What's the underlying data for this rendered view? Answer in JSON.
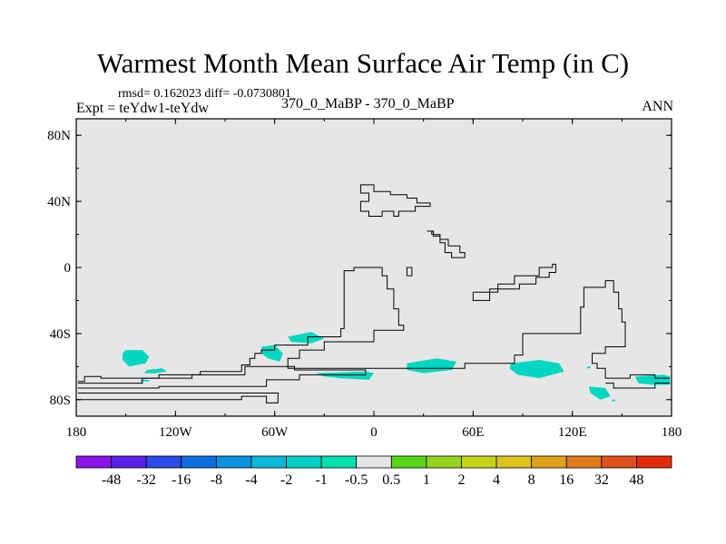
{
  "title": "Warmest Month Mean Surface Air Temp (in C)",
  "stats": "rmsd= 0.162023 diff= -0.0730801",
  "expt": "Expt = teYdw1-teYdw",
  "center_label": "370_0_MaBP - 370_0_MaBP",
  "period": "ANN",
  "map": {
    "projection": "cylindrical-equidistant",
    "lon_range": [
      -180,
      180
    ],
    "lat_range": [
      -90,
      90
    ],
    "background_color": "#e6e6e6",
    "lat_ticks": [
      {
        "value": 80,
        "label": "80N"
      },
      {
        "value": 40,
        "label": "40N"
      },
      {
        "value": 0,
        "label": "0"
      },
      {
        "value": -40,
        "label": "40S"
      },
      {
        "value": -80,
        "label": "80S"
      }
    ],
    "lon_ticks": [
      {
        "value": -180,
        "label": "180"
      },
      {
        "value": -120,
        "label": "120W"
      },
      {
        "value": -60,
        "label": "60W"
      },
      {
        "value": 0,
        "label": "0"
      },
      {
        "value": 60,
        "label": "60E"
      },
      {
        "value": 120,
        "label": "120E"
      },
      {
        "value": 180,
        "label": "180"
      }
    ],
    "coastlines": [
      [
        [
          -179,
          -69
        ],
        [
          -175,
          -69
        ],
        [
          -175,
          -66
        ],
        [
          -165,
          -66
        ],
        [
          -165,
          -67
        ],
        [
          -130,
          -67
        ],
        [
          -130,
          -65
        ],
        [
          -105,
          -65
        ],
        [
          -105,
          -63
        ],
        [
          -80,
          -63
        ],
        [
          -80,
          -59
        ],
        [
          -75,
          -59
        ],
        [
          -75,
          -55
        ],
        [
          -72,
          -55
        ],
        [
          -72,
          -52
        ],
        [
          -68,
          -52
        ],
        [
          -68,
          -50
        ],
        [
          -60,
          -50
        ],
        [
          -60,
          -47
        ],
        [
          -40,
          -47
        ],
        [
          -40,
          -42
        ],
        [
          -20,
          -42
        ],
        [
          -20,
          -37
        ],
        [
          -18,
          -37
        ],
        [
          -18,
          -2
        ],
        [
          -12,
          -2
        ],
        [
          -12,
          0
        ],
        [
          5,
          0
        ],
        [
          5,
          -5
        ],
        [
          8,
          -5
        ],
        [
          8,
          -13
        ],
        [
          12,
          -13
        ],
        [
          12,
          -25
        ],
        [
          15,
          -25
        ],
        [
          15,
          -35
        ],
        [
          18,
          -35
        ],
        [
          18,
          -38
        ],
        [
          0,
          -38
        ],
        [
          0,
          -45
        ],
        [
          -30,
          -45
        ],
        [
          -30,
          -50
        ],
        [
          -45,
          -50
        ],
        [
          -45,
          -55
        ],
        [
          -52,
          -55
        ],
        [
          -52,
          -61
        ],
        [
          55,
          -61
        ],
        [
          55,
          -58
        ],
        [
          85,
          -58
        ],
        [
          85,
          -53
        ],
        [
          90,
          -53
        ],
        [
          90,
          -40
        ],
        [
          125,
          -40
        ],
        [
          125,
          -24
        ],
        [
          127,
          -24
        ],
        [
          127,
          -12
        ],
        [
          140,
          -12
        ],
        [
          140,
          -8
        ],
        [
          145,
          -8
        ],
        [
          145,
          -15
        ],
        [
          148,
          -15
        ],
        [
          148,
          -25
        ],
        [
          150,
          -25
        ],
        [
          150,
          -33
        ],
        [
          152,
          -33
        ],
        [
          152,
          -48
        ],
        [
          140,
          -48
        ],
        [
          140,
          -52
        ],
        [
          132,
          -52
        ],
        [
          132,
          -58
        ],
        [
          135,
          -58
        ],
        [
          135,
          -61
        ],
        [
          140,
          -61
        ],
        [
          140,
          -67
        ],
        [
          155,
          -67
        ],
        [
          155,
          -65
        ],
        [
          170,
          -65
        ],
        [
          170,
          -67
        ],
        [
          179,
          -67
        ]
      ],
      [
        [
          -179,
          -73
        ],
        [
          -130,
          -73
        ],
        [
          -130,
          -72
        ],
        [
          -65,
          -72
        ],
        [
          -65,
          -68
        ],
        [
          -45,
          -68
        ],
        [
          -45,
          -65
        ],
        [
          -5,
          -65
        ],
        [
          -5,
          -62
        ],
        [
          -48,
          -62
        ],
        [
          -48,
          -60
        ],
        [
          -78,
          -60
        ],
        [
          -78,
          -65
        ],
        [
          -110,
          -65
        ],
        [
          -110,
          -67
        ],
        [
          -140,
          -67
        ],
        [
          -140,
          -70
        ],
        [
          -179,
          -70
        ]
      ],
      [
        [
          -179,
          -80
        ],
        [
          -80,
          -80
        ],
        [
          -80,
          -78
        ],
        [
          -65,
          -78
        ],
        [
          -65,
          -82
        ],
        [
          -58,
          -82
        ],
        [
          -58,
          -76
        ],
        [
          -179,
          -76
        ]
      ],
      [
        [
          140,
          -70
        ],
        [
          145,
          -70
        ],
        [
          145,
          -73
        ],
        [
          170,
          -73
        ],
        [
          170,
          -70
        ],
        [
          179,
          -70
        ]
      ],
      [
        [
          -8,
          48
        ],
        [
          -8,
          50
        ],
        [
          0,
          50
        ],
        [
          0,
          46
        ],
        [
          10,
          46
        ],
        [
          10,
          44
        ],
        [
          20,
          44
        ],
        [
          20,
          42
        ],
        [
          26,
          42
        ],
        [
          26,
          39
        ],
        [
          34,
          39
        ],
        [
          34,
          37
        ],
        [
          25,
          37
        ],
        [
          25,
          34
        ],
        [
          15,
          34
        ],
        [
          15,
          31
        ],
        [
          12,
          31
        ],
        [
          12,
          34
        ],
        [
          5,
          34
        ],
        [
          5,
          31
        ],
        [
          -3,
          31
        ],
        [
          -3,
          34
        ],
        [
          -8,
          34
        ],
        [
          -8,
          40
        ],
        [
          -3,
          40
        ],
        [
          -3,
          45
        ],
        [
          -8,
          45
        ],
        [
          -8,
          48
        ]
      ],
      [
        [
          32,
          22
        ],
        [
          36,
          22
        ],
        [
          36,
          19
        ],
        [
          40,
          19
        ],
        [
          40,
          15
        ],
        [
          43,
          15
        ],
        [
          43,
          9
        ],
        [
          47,
          9
        ],
        [
          47,
          6
        ],
        [
          55,
          6
        ],
        [
          55,
          9
        ],
        [
          52,
          9
        ],
        [
          52,
          13
        ],
        [
          45,
          13
        ],
        [
          45,
          17
        ],
        [
          40,
          17
        ],
        [
          40,
          20
        ],
        [
          35,
          20
        ],
        [
          35,
          22
        ],
        [
          32,
          22
        ]
      ],
      [
        [
          20,
          -5
        ],
        [
          23,
          -5
        ],
        [
          23,
          0
        ],
        [
          20,
          0
        ],
        [
          20,
          -5
        ]
      ],
      [
        [
          60,
          -15
        ],
        [
          75,
          -15
        ],
        [
          75,
          -10
        ],
        [
          85,
          -10
        ],
        [
          85,
          -5
        ],
        [
          100,
          -5
        ],
        [
          100,
          0
        ],
        [
          108,
          0
        ],
        [
          108,
          2
        ],
        [
          110,
          2
        ],
        [
          110,
          -3
        ],
        [
          106,
          -3
        ],
        [
          106,
          -6
        ],
        [
          98,
          -6
        ],
        [
          98,
          -10
        ],
        [
          88,
          -10
        ],
        [
          88,
          -13
        ],
        [
          70,
          -13
        ],
        [
          70,
          -20
        ],
        [
          60,
          -20
        ],
        [
          60,
          -15
        ]
      ]
    ],
    "anomaly_color": "#00d7c1",
    "anomalies": [
      [
        [
          -150,
          -50
        ],
        [
          -140,
          -50
        ],
        [
          -136,
          -54
        ],
        [
          -138,
          -58
        ],
        [
          -148,
          -60
        ],
        [
          -152,
          -56
        ],
        [
          -152,
          -52
        ]
      ],
      [
        [
          -137,
          -62
        ],
        [
          -128,
          -61
        ],
        [
          -125,
          -63
        ],
        [
          -132,
          -64
        ],
        [
          -139,
          -64
        ]
      ],
      [
        [
          -141,
          -68
        ],
        [
          -136,
          -68
        ],
        [
          -136,
          -69
        ],
        [
          -141,
          -69
        ]
      ],
      [
        [
          -68,
          -48
        ],
        [
          -60,
          -47
        ],
        [
          -55,
          -52
        ],
        [
          -57,
          -57
        ],
        [
          -64,
          -55
        ],
        [
          -68,
          -52
        ]
      ],
      [
        [
          -52,
          -42
        ],
        [
          -38,
          -39
        ],
        [
          -30,
          -43
        ],
        [
          -38,
          -46
        ],
        [
          -50,
          -45
        ]
      ],
      [
        [
          -35,
          -64
        ],
        [
          -5,
          -63
        ],
        [
          0,
          -64
        ],
        [
          -3,
          -68
        ],
        [
          -20,
          -67
        ],
        [
          -30,
          -66
        ]
      ],
      [
        [
          20,
          -58
        ],
        [
          38,
          -55
        ],
        [
          50,
          -57
        ],
        [
          47,
          -62
        ],
        [
          30,
          -64
        ],
        [
          20,
          -62
        ]
      ],
      [
        [
          83,
          -58
        ],
        [
          100,
          -56
        ],
        [
          112,
          -58
        ],
        [
          115,
          -63
        ],
        [
          100,
          -67
        ],
        [
          87,
          -65
        ],
        [
          82,
          -61
        ]
      ],
      [
        [
          130,
          -72
        ],
        [
          140,
          -73
        ],
        [
          143,
          -78
        ],
        [
          137,
          -80
        ],
        [
          131,
          -76
        ]
      ],
      [
        [
          144,
          -80
        ],
        [
          146,
          -80
        ],
        [
          146,
          -81
        ],
        [
          144,
          -81
        ]
      ],
      [
        [
          129,
          -60
        ],
        [
          131,
          -60
        ],
        [
          131,
          -61
        ],
        [
          129,
          -61
        ]
      ],
      [
        [
          158,
          -66
        ],
        [
          175,
          -65
        ],
        [
          179,
          -66
        ],
        [
          179,
          -71
        ],
        [
          168,
          -71
        ],
        [
          160,
          -70
        ]
      ]
    ]
  },
  "colorbar": {
    "colors": [
      "#8a15e6",
      "#5a1ee6",
      "#2c4be6",
      "#0b6ee0",
      "#0b93e0",
      "#0bb8d8",
      "#00d0c8",
      "#00e0b0",
      "#e6e6e6",
      "#5ad61a",
      "#96d21a",
      "#c4d21a",
      "#dcc21a",
      "#e0a01a",
      "#e07a1a",
      "#e0501a",
      "#e02a0a"
    ],
    "labels": [
      "-48",
      "-32",
      "-16",
      "-8",
      "-4",
      "-2",
      "-1",
      "-0.5",
      "0.5",
      "1",
      "2",
      "4",
      "8",
      "16",
      "32",
      "48"
    ]
  }
}
